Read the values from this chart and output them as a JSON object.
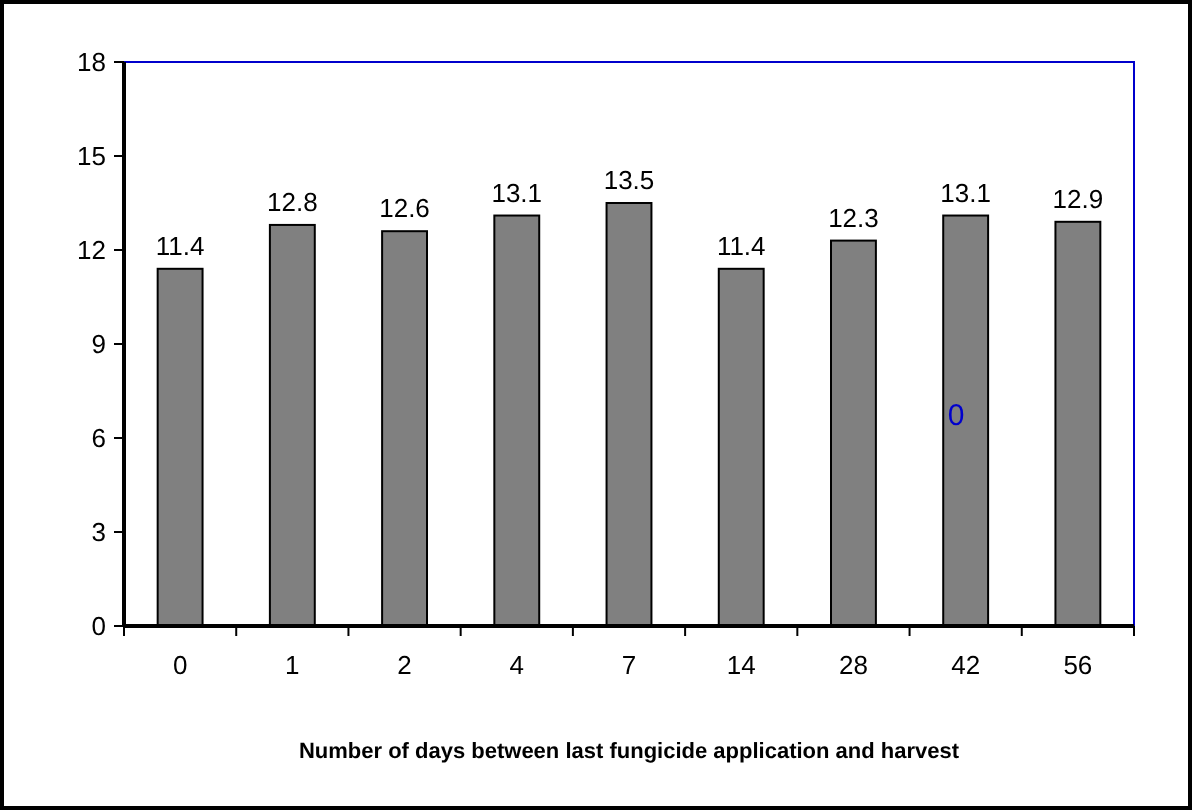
{
  "chart_data": {
    "type": "bar",
    "xlabel": "Number of days between last fungicide application and harvest",
    "categories": [
      "0",
      "1",
      "2",
      "4",
      "7",
      "14",
      "28",
      "42",
      "56"
    ],
    "values": [
      11.4,
      12.8,
      12.6,
      13.1,
      13.5,
      11.4,
      12.3,
      13.1,
      12.9
    ],
    "color": "#808080",
    "ylim": [
      0,
      18
    ],
    "yticks": [
      0,
      3,
      6,
      9,
      12,
      15,
      18
    ],
    "data_labels": true,
    "grid": false,
    "annotations": [
      "0"
    ]
  }
}
